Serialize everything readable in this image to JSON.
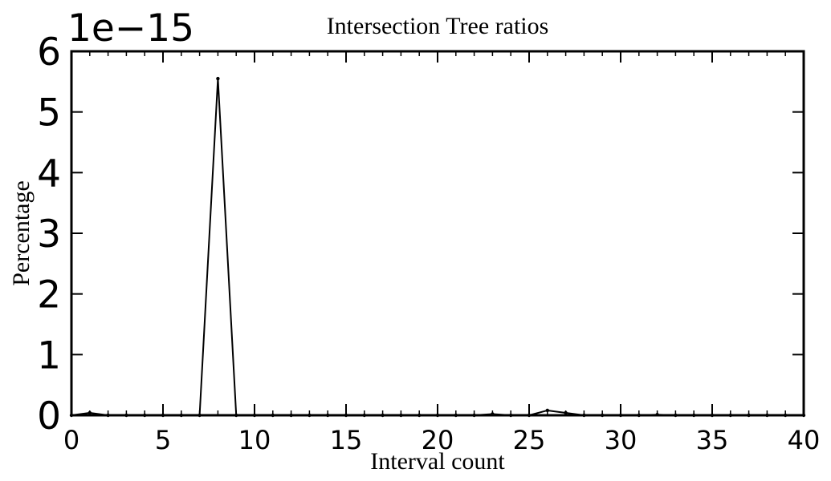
{
  "chart_data": {
    "type": "line",
    "title": "Intersection Tree ratios",
    "xlabel": "Interval count",
    "ylabel": "Percentage",
    "y_offset_label": "1e−15",
    "xlim": [
      0,
      40
    ],
    "ylim": [
      0,
      6
    ],
    "x_ticks": [
      "0",
      "5",
      "10",
      "15",
      "20",
      "25",
      "30",
      "35",
      "40"
    ],
    "y_ticks": [
      "0",
      "1",
      "2",
      "3",
      "4",
      "5",
      "6"
    ],
    "grid": false,
    "series": [
      {
        "points": [
          [
            0,
            0
          ],
          [
            1,
            0.04
          ],
          [
            2,
            0
          ],
          [
            3,
            0
          ],
          [
            4,
            0
          ],
          [
            5,
            0
          ],
          [
            6,
            0
          ],
          [
            7,
            0
          ],
          [
            8,
            5.55
          ],
          [
            9,
            0
          ],
          [
            10,
            0
          ],
          [
            11,
            0
          ],
          [
            12,
            0
          ],
          [
            13,
            0
          ],
          [
            14,
            0
          ],
          [
            15,
            0
          ],
          [
            16,
            0
          ],
          [
            17,
            0
          ],
          [
            18,
            0
          ],
          [
            19,
            0
          ],
          [
            20,
            0
          ],
          [
            21,
            0
          ],
          [
            22,
            0
          ],
          [
            23,
            0.02
          ],
          [
            24,
            0
          ],
          [
            25,
            0
          ],
          [
            26,
            0.08
          ],
          [
            27,
            0.04
          ],
          [
            28,
            0
          ],
          [
            29,
            0
          ],
          [
            30,
            0
          ],
          [
            31,
            0
          ],
          [
            32,
            0.01
          ],
          [
            33,
            0
          ],
          [
            34,
            0
          ],
          [
            35,
            0
          ],
          [
            36,
            0
          ],
          [
            37,
            0
          ],
          [
            38,
            0
          ],
          [
            39,
            0
          ],
          [
            40,
            0
          ]
        ]
      }
    ]
  }
}
